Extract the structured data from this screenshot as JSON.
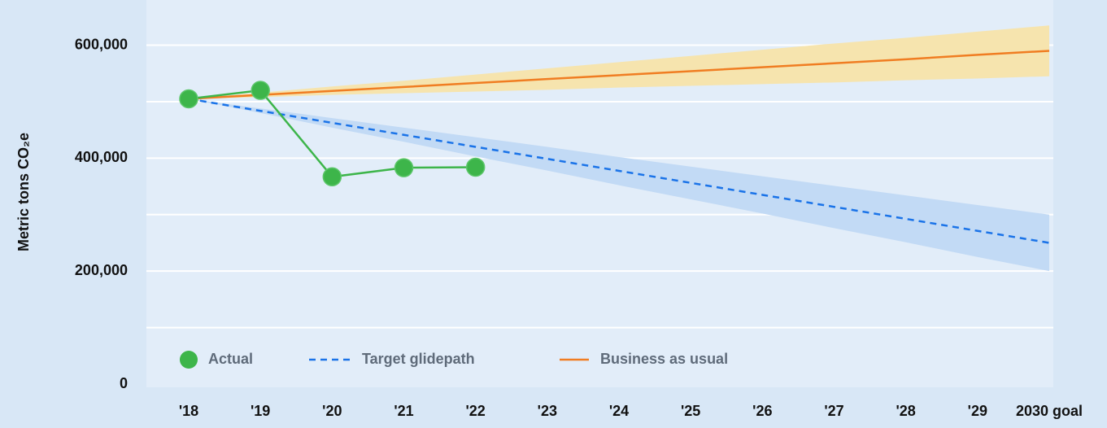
{
  "chart_data": {
    "type": "line",
    "y_label": "Metric tons CO₂e",
    "categories": [
      "'18",
      "'19",
      "'20",
      "'21",
      "'22",
      "'23",
      "'24",
      "'25",
      "'26",
      "'27",
      "'28",
      "'29",
      "2030 goal"
    ],
    "series": [
      {
        "name": "Actual",
        "color": "#3db54a",
        "style": "markers",
        "values": [
          505000,
          520000,
          367000,
          383000,
          384000,
          null,
          null,
          null,
          null,
          null,
          null,
          null,
          null
        ]
      },
      {
        "name": "Target glidepath",
        "color": "#1a73e8",
        "style": "dashed",
        "values": [
          505000,
          483750,
          462500,
          441250,
          420000,
          398750,
          377500,
          356250,
          335000,
          313750,
          292500,
          271250,
          250000
        ],
        "band_color": "#c2daf5",
        "lower": [
          505000,
          480000,
          454000,
          429000,
          403000,
          378000,
          352000,
          327000,
          302000,
          276000,
          251000,
          225000,
          200000
        ],
        "upper": [
          505000,
          488000,
          471000,
          454000,
          437000,
          420000,
          402000,
          385000,
          368000,
          351000,
          334000,
          317000,
          300000
        ]
      },
      {
        "name": "Business as usual",
        "color": "#f07d22",
        "style": "solid",
        "values": [
          505000,
          512000,
          519000,
          526000,
          533000,
          540000,
          547000,
          554000,
          561000,
          568000,
          575000,
          583000,
          590000
        ],
        "band_color": "#f6e4ae",
        "lower": [
          505000,
          508000,
          512000,
          515000,
          518000,
          521000,
          525000,
          528000,
          531000,
          534000,
          538000,
          541000,
          545000
        ],
        "upper": [
          505000,
          516000,
          527000,
          537000,
          548000,
          559000,
          570000,
          581000,
          592000,
          603000,
          613000,
          624000,
          635000
        ]
      }
    ],
    "ylim": [
      0,
      680000
    ],
    "yticks": [
      0,
      {
        "value": 200000,
        "label": "200,000"
      },
      {
        "value": 400000,
        "label": "400,000"
      },
      {
        "value": 600000,
        "label": "600,000"
      }
    ],
    "minor_gridlines": [
      100000,
      300000,
      500000
    ],
    "grid": true,
    "legend": "bottom-left"
  }
}
